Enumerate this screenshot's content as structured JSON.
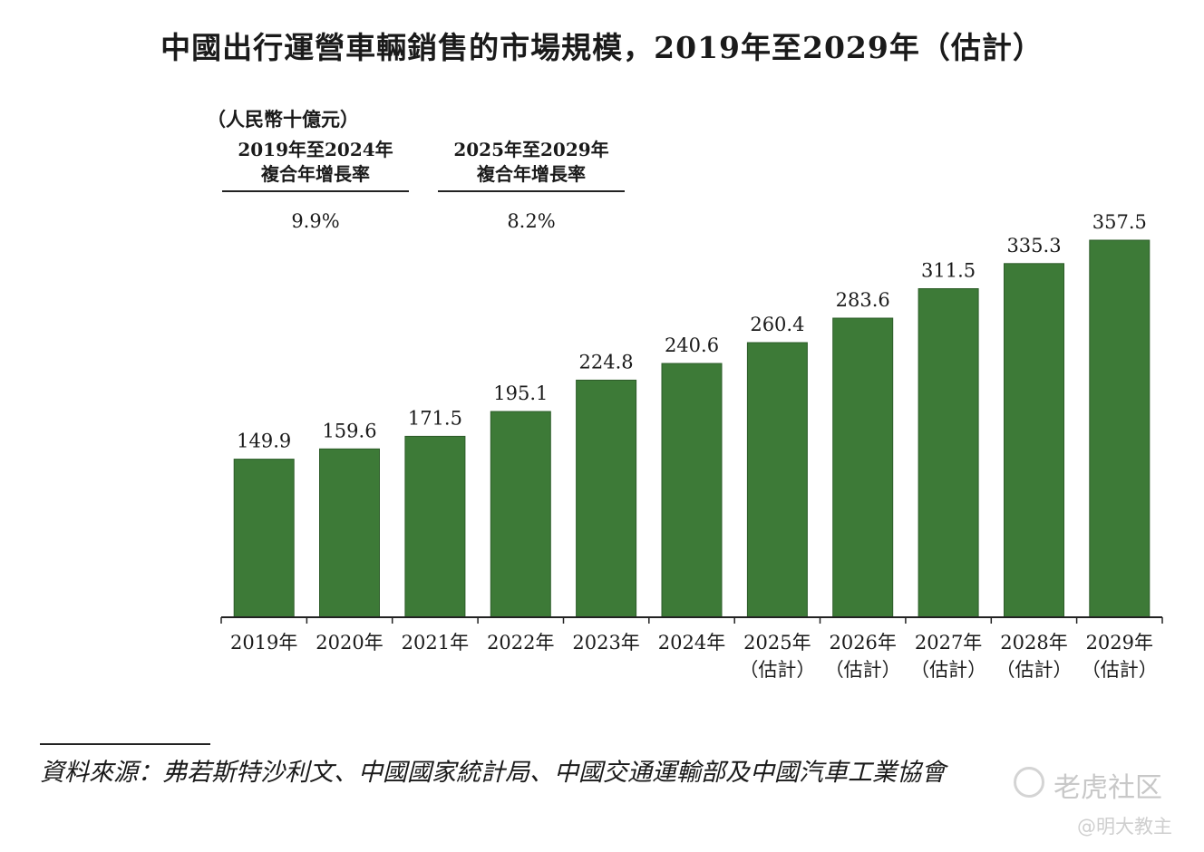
{
  "chart_data": {
    "type": "bar",
    "title": "中國出行運營車輛銷售的市場規模，2019年至2029年（估計）",
    "unit_label": "（人民幣十億元）",
    "categories": [
      "2019年",
      "2020年",
      "2021年",
      "2022年",
      "2023年",
      "2024年",
      "2025年\n（估計）",
      "2026年\n（估計）",
      "2027年\n（估計）",
      "2028年\n（估計）",
      "2029年\n（估計）"
    ],
    "values": [
      149.9,
      159.6,
      171.5,
      195.1,
      224.8,
      240.6,
      260.4,
      283.6,
      311.5,
      335.3,
      357.5
    ],
    "value_labels": [
      "149.9",
      "159.6",
      "171.5",
      "195.1",
      "224.8",
      "240.6",
      "260.4",
      "283.6",
      "311.5",
      "335.3",
      "357.5"
    ],
    "bar_color": "#3d7a37",
    "grid": false,
    "ylim": [
      0,
      400
    ],
    "cagr": [
      {
        "period": "2019年至2024年",
        "label": "複合年增長率",
        "value": "9.9%"
      },
      {
        "period": "2025年至2029年",
        "label": "複合年增長率",
        "value": "8.2%"
      }
    ]
  },
  "source": "資料來源：弗若斯特沙利文、中國國家統計局、中國交通運輸部及中國汽車工業協會",
  "watermark": {
    "main": "老虎社区",
    "sub": "@明大教主"
  }
}
